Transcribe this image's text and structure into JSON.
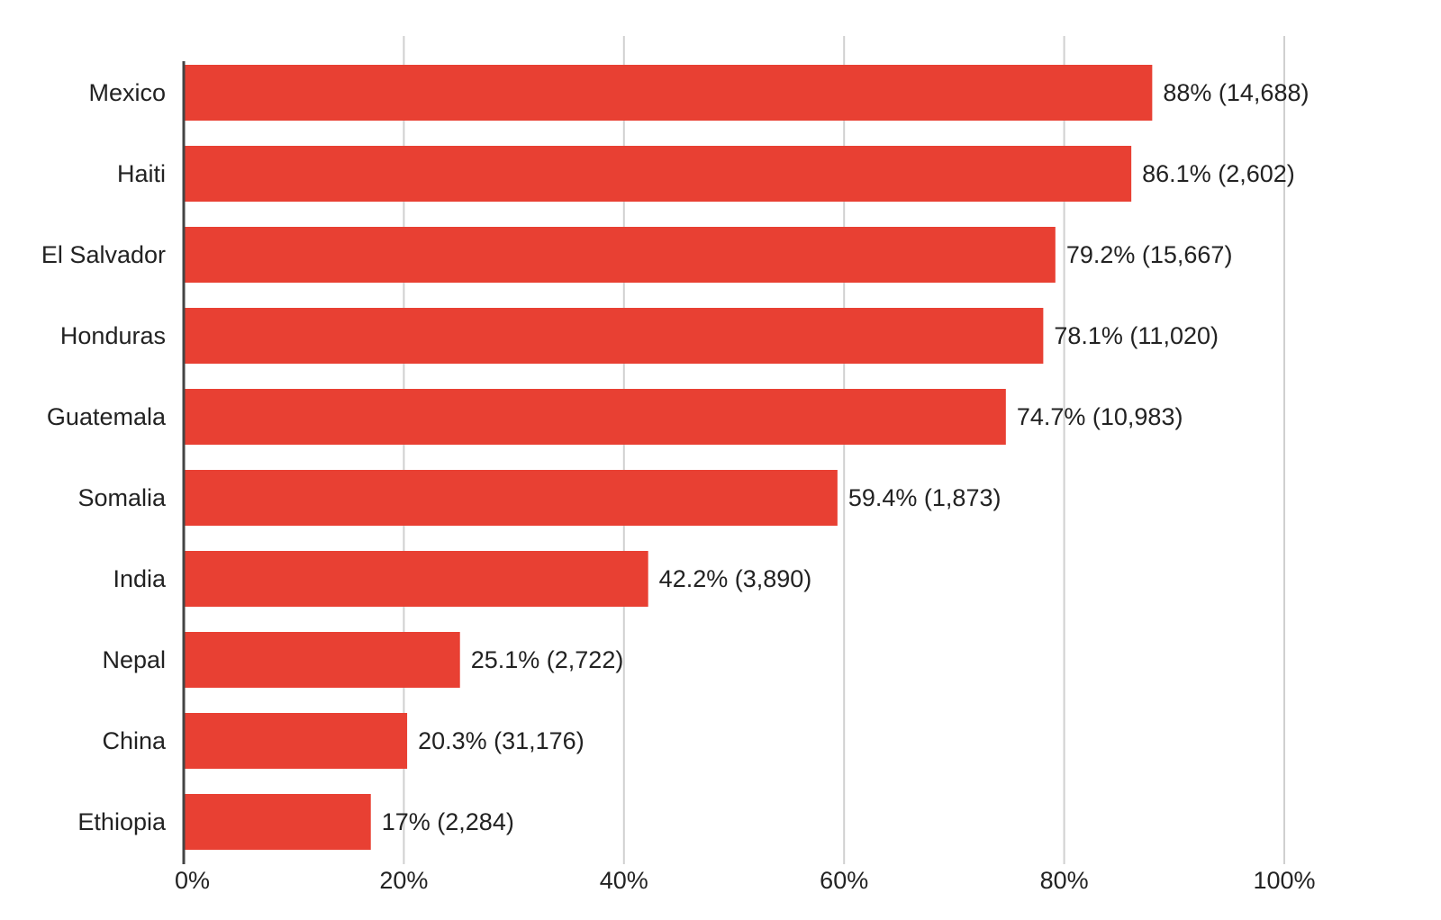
{
  "chart_data": {
    "type": "bar",
    "orientation": "horizontal",
    "categories": [
      "Mexico",
      "Haiti",
      "El Salvador",
      "Honduras",
      "Guatemala",
      "Somalia",
      "India",
      "Nepal",
      "China",
      "Ethiopia"
    ],
    "values": [
      88,
      86.1,
      79.2,
      78.1,
      74.7,
      59.4,
      42.2,
      25.1,
      20.3,
      17
    ],
    "data_labels": [
      "88% (14,688)",
      "86.1% (2,602)",
      "79.2% (15,667)",
      "78.1% (11,020)",
      "74.7% (10,983)",
      "59.4% (1,873)",
      "42.2% (3,890)",
      "25.1% (2,722)",
      "20.3% (31,176)",
      "17% (2,284)"
    ],
    "x_ticks": [
      "0%",
      "20%",
      "40%",
      "60%",
      "80%",
      "100%"
    ],
    "xlim": [
      0,
      100
    ],
    "grid": true,
    "legend": "none",
    "bar_color": "#e84033"
  }
}
